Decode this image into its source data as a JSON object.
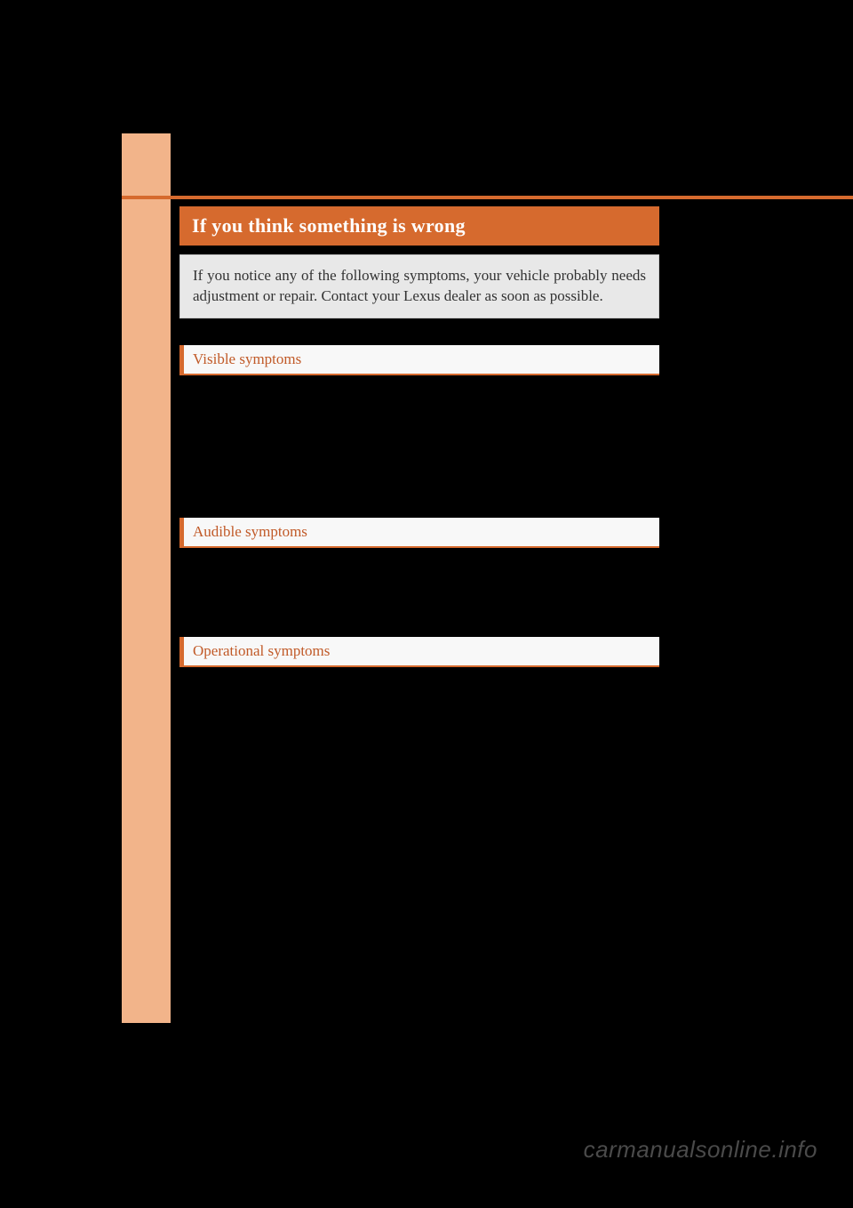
{
  "colors": {
    "page_bg": "#000000",
    "accent": "#d66a2e",
    "margin_bg": "#f2b48a",
    "heading_text": "#ffffff",
    "intro_bg": "#e8e8e8",
    "intro_text": "#333333",
    "section_bg": "#f8f8f8",
    "section_text": "#c15a28",
    "watermark_text": "#4a4a4a"
  },
  "typography": {
    "heading_fontsize": 22,
    "body_fontsize": 17,
    "section_fontsize": 17,
    "watermark_fontsize": 26
  },
  "header": {
    "main_title": "If you think something is wrong"
  },
  "intro": {
    "text": "If you notice any of the following symptoms, your vehicle probably needs adjustment or repair. Contact your Lexus dealer as soon as possible."
  },
  "sections": [
    {
      "title": "Visible symptoms"
    },
    {
      "title": "Audible symptoms"
    },
    {
      "title": "Operational symptoms"
    }
  ],
  "watermark": {
    "text": "carmanualsonline.info"
  }
}
